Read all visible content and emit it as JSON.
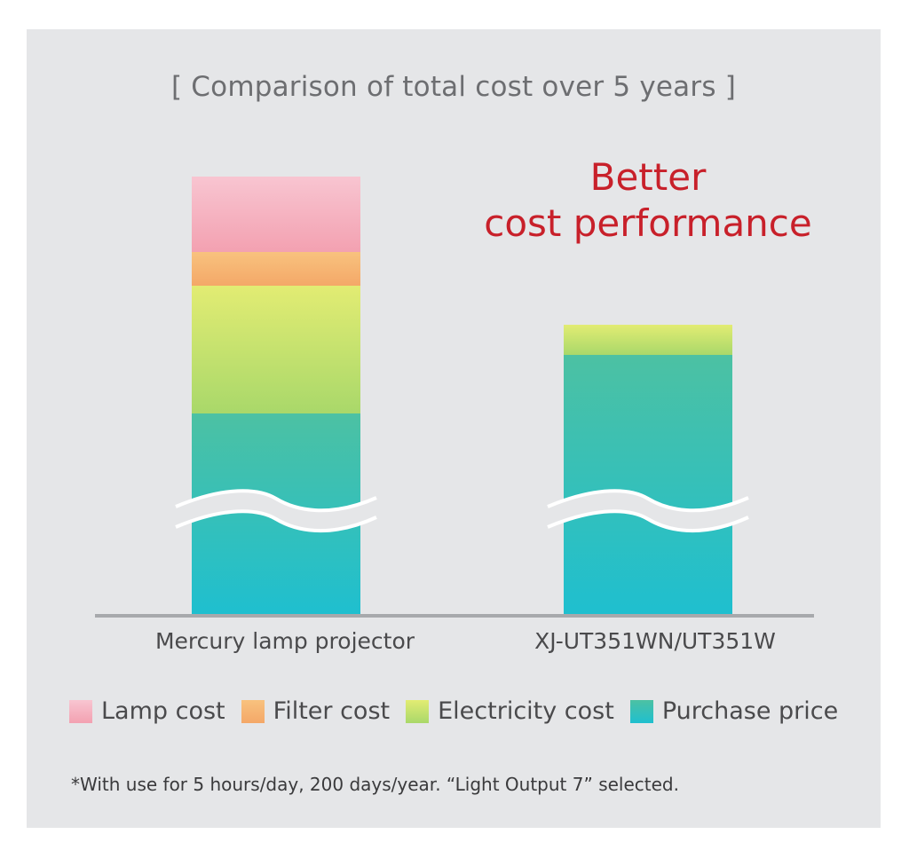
{
  "chart_data": {
    "type": "bar",
    "stacked": true,
    "title": "[ Comparison of total cost over 5 years ]",
    "callout": [
      "Better",
      "cost performance"
    ],
    "categories": [
      "Mercury lamp projector",
      "XJ-UT351WN/UT351W"
    ],
    "axis_break": true,
    "y_values_unit": "relative (no numeric axis shown)",
    "series": [
      {
        "name": "Purchase price",
        "values": [
          226,
          292
        ],
        "colors": [
          "#1fbfcf",
          "#4cc1a3"
        ]
      },
      {
        "name": "Electricity cost",
        "values": [
          144,
          34
        ],
        "colors": [
          "#a9d86a",
          "#e2ec73"
        ]
      },
      {
        "name": "Filter cost",
        "values": [
          38,
          0
        ],
        "colors": [
          "#f4a868",
          "#f8c27e"
        ]
      },
      {
        "name": "Lamp cost",
        "values": [
          85,
          0
        ],
        "colors": [
          "#f3a1b1",
          "#f8c5d1"
        ]
      }
    ],
    "legend": [
      "Lamp cost",
      "Filter cost",
      "Electricity cost",
      "Purchase price"
    ],
    "footnote": "*With use for 5 hours/day, 200 days/year.   “Light Output 7” selected."
  }
}
